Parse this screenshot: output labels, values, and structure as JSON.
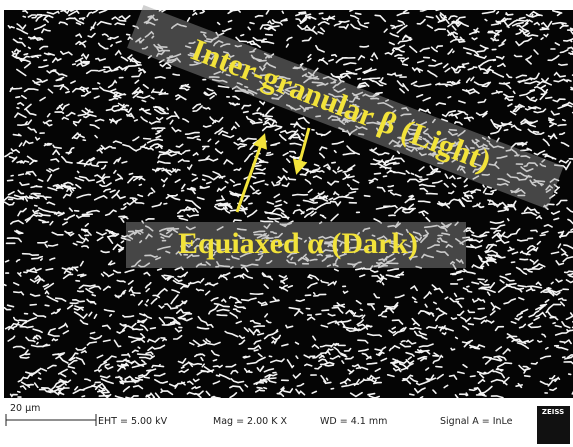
{
  "annotations": {
    "intergranular": "Inter-granular β (Light)",
    "equiaxed": "Equiaxed α (Dark)"
  },
  "info_bar": {
    "scale_bar": "20 µm",
    "eht": "EHT = 5.00 kV",
    "mag": "Mag = 2.00 K X",
    "wd": "WD = 4.1 mm",
    "signal": "Signal A = InLe",
    "logo": "ZEISS"
  }
}
